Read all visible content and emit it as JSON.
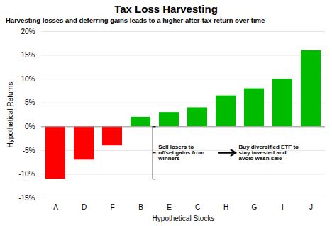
{
  "chart_data": {
    "type": "bar",
    "title": "Tax Loss Harvesting",
    "subtitle": "Harvesting losses and deferring gains leads to a higher after-tax return over time",
    "xlabel": "Hypothetical Stocks",
    "ylabel": "Hypothetical Returns",
    "categories": [
      "A",
      "D",
      "F",
      "B",
      "E",
      "C",
      "H",
      "G",
      "I",
      "J"
    ],
    "values": [
      -11,
      -7,
      -4,
      2,
      3,
      4,
      6.5,
      8,
      10,
      16
    ],
    "colors": [
      "#ff0000",
      "#ff0000",
      "#ff0000",
      "#00bb00",
      "#00bb00",
      "#00bb00",
      "#00bb00",
      "#00bb00",
      "#00bb00",
      "#00bb00"
    ],
    "ylim": [
      -15,
      20
    ],
    "yticks": [
      {
        "value": -15,
        "label": "-15%"
      },
      {
        "value": -10,
        "label": "-10%"
      },
      {
        "value": -5,
        "label": "-5%"
      },
      {
        "value": 0,
        "label": "0%"
      },
      {
        "value": 5,
        "label": "5%"
      },
      {
        "value": 10,
        "label": "10%"
      },
      {
        "value": 15,
        "label": "15%"
      },
      {
        "value": 20,
        "label": "20%"
      }
    ],
    "grid": true,
    "annotations": [
      "Sell losers to\noffset gains from\nwinners",
      "Buy diversified ETF to\nstay invested and\navoid wash sale"
    ]
  }
}
